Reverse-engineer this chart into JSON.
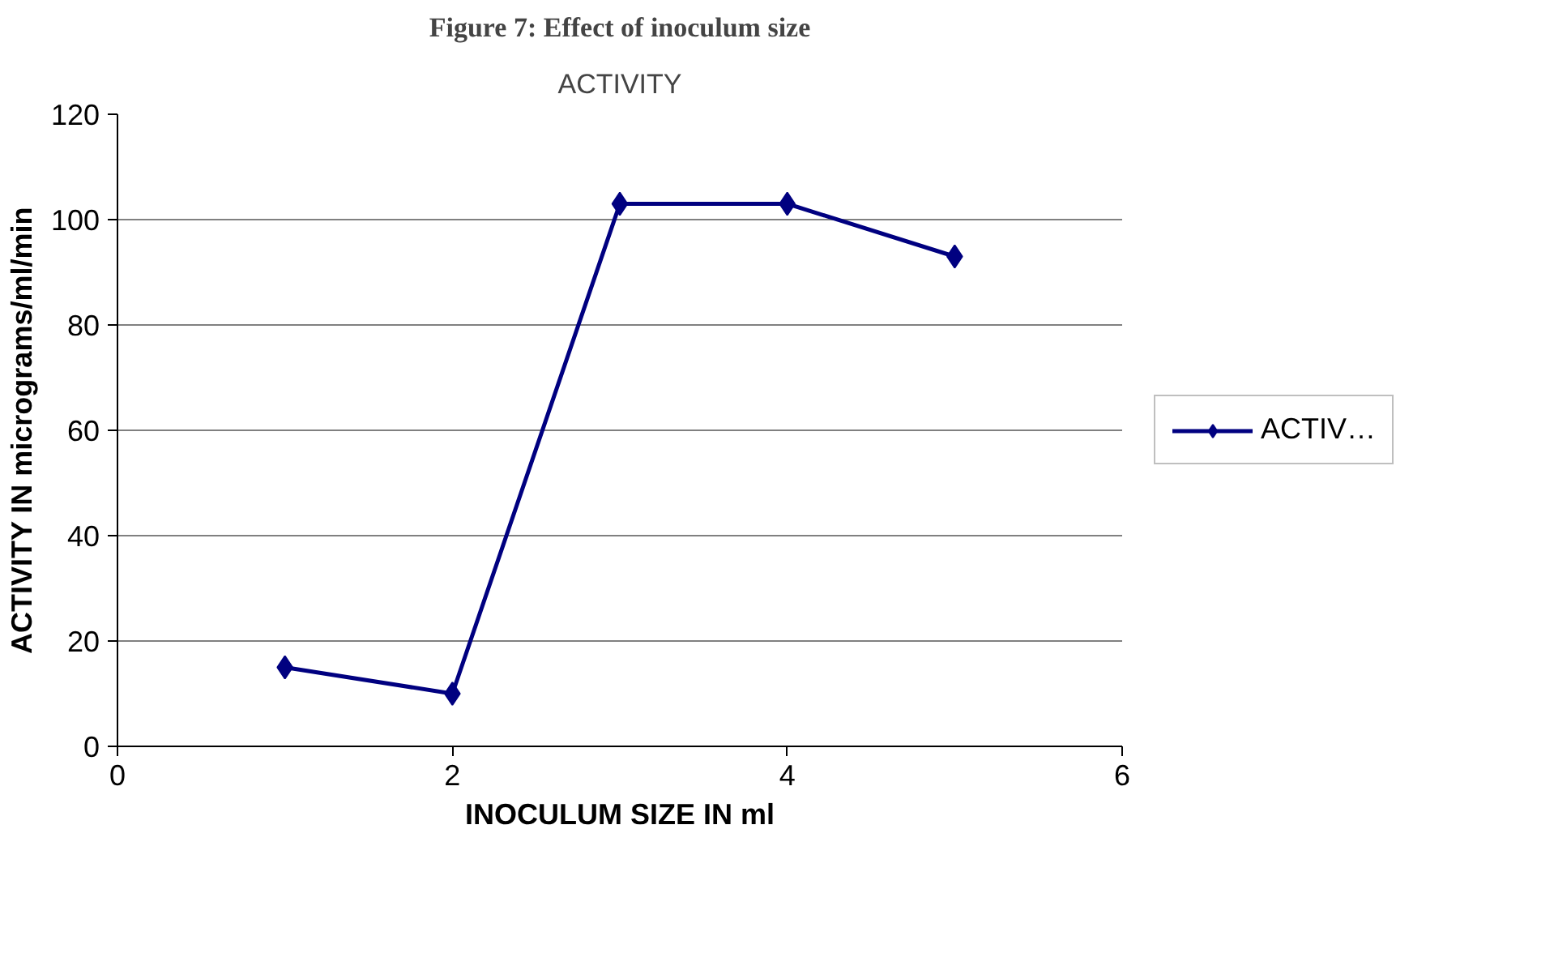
{
  "chart_data": {
    "type": "line",
    "title": "Figure 7: Effect of inoculum size",
    "subtitle": "ACTIVITY",
    "xlabel": "INOCULUM SIZE IN ml",
    "ylabel": "ACTIVITY IN micrograms/ml/min",
    "x": [
      1,
      2,
      3,
      4,
      5
    ],
    "series": [
      {
        "name": "ACTIV…",
        "color": "#000080",
        "values": [
          15,
          10,
          103,
          103,
          93
        ]
      }
    ],
    "xlim": [
      0,
      6
    ],
    "xticks": [
      0,
      2,
      4,
      6
    ],
    "ylim": [
      0,
      120
    ],
    "yticks": [
      0,
      20,
      40,
      60,
      80,
      100,
      120
    ],
    "grid": "y",
    "legend": "right",
    "marker": "diamond",
    "line_style": "solid"
  }
}
